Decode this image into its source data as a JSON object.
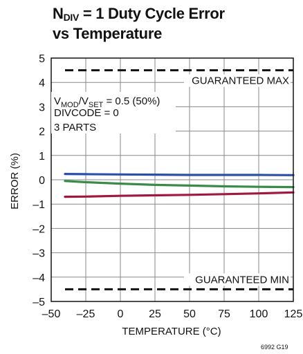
{
  "figure_id": "6992 G19",
  "chart_data": {
    "type": "line",
    "title_main": "N",
    "title_sub": "DIV",
    "title_rest": " = 1 Duty Cycle Error",
    "title_line2": "vs Temperature",
    "xlabel": "TEMPERATURE (°C)",
    "ylabel": "ERROR (%)",
    "xlim": [
      -50,
      125
    ],
    "ylim": [
      -5,
      5
    ],
    "x_ticks": [
      -50,
      -25,
      0,
      25,
      50,
      75,
      100,
      125
    ],
    "x_tick_labels": [
      "–50",
      "–25",
      "0",
      "25",
      "50",
      "75",
      "100",
      "125"
    ],
    "y_ticks": [
      5,
      4,
      3,
      2,
      1,
      0,
      -1,
      -2,
      -3,
      -4,
      -5
    ],
    "y_tick_labels": [
      "5",
      "4",
      "3",
      "2",
      "1",
      "0",
      "–1",
      "–2",
      "–3",
      "–4",
      "–5"
    ],
    "grid": true,
    "limits": [
      {
        "label": "GUARANTEED MAX",
        "value": 4.5
      },
      {
        "label": "GUARANTEED MIN",
        "value": -4.5
      }
    ],
    "conditions": {
      "line1_a": "V",
      "line1_a_sub": "MOD",
      "line1_b": "/V",
      "line1_b_sub": "SET",
      "line1_c": " = 0.5 (50%)",
      "line2": "DIVCODE = 0",
      "line3": "3 PARTS"
    },
    "series": [
      {
        "color": "#2e4fa8",
        "x": [
          -40,
          -25,
          0,
          25,
          50,
          75,
          100,
          125
        ],
        "y": [
          0.24,
          0.23,
          0.22,
          0.21,
          0.2,
          0.2,
          0.2,
          0.19
        ]
      },
      {
        "color": "#3a8a4a",
        "x": [
          -40,
          -25,
          0,
          25,
          50,
          75,
          100,
          125
        ],
        "y": [
          -0.05,
          -0.1,
          -0.16,
          -0.21,
          -0.24,
          -0.27,
          -0.29,
          -0.3
        ]
      },
      {
        "color": "#a01840",
        "x": [
          -40,
          -25,
          0,
          25,
          50,
          75,
          100,
          125
        ],
        "y": [
          -0.7,
          -0.69,
          -0.66,
          -0.64,
          -0.62,
          -0.59,
          -0.56,
          -0.52
        ]
      }
    ]
  }
}
